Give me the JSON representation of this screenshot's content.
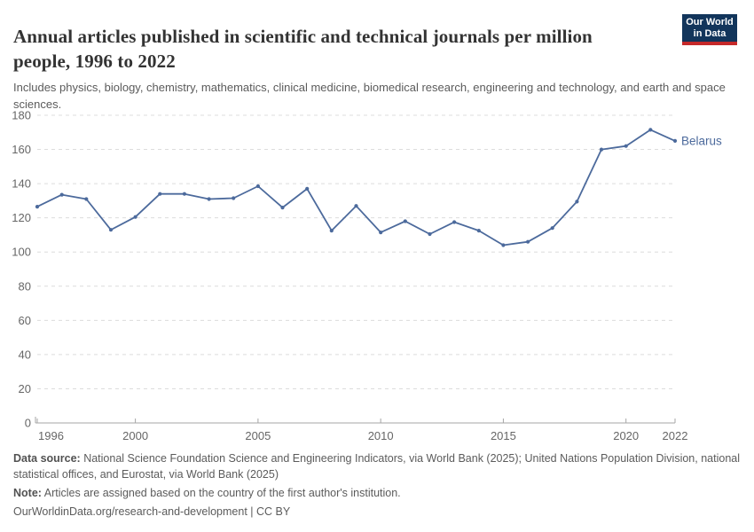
{
  "header": {
    "logo": {
      "line1": "Our World",
      "line2": "in Data"
    }
  },
  "chart_data": {
    "type": "line",
    "title": "Annual articles published in scientific and technical journals per million people, 1996 to 2022",
    "subtitle": "Includes physics, biology, chemistry, mathematics, clinical medicine, biomedical research, engineering and technology, and earth and space sciences.",
    "x": [
      1996,
      1997,
      1998,
      1999,
      2000,
      2001,
      2002,
      2003,
      2004,
      2005,
      2006,
      2007,
      2008,
      2009,
      2010,
      2011,
      2012,
      2013,
      2014,
      2015,
      2016,
      2017,
      2018,
      2019,
      2020,
      2021,
      2022
    ],
    "series": [
      {
        "name": "Belarus",
        "color": "#4C6A9C",
        "values": [
          126.5,
          133.5,
          131,
          113,
          120.5,
          134,
          134,
          131,
          131.5,
          138.5,
          126,
          137,
          112.5,
          127,
          111.5,
          118,
          110.5,
          117.5,
          112.5,
          104,
          106,
          114,
          129.5,
          160,
          162,
          171.5,
          165
        ]
      }
    ],
    "xlabel": "",
    "ylabel": "",
    "ylim": [
      0,
      180
    ],
    "yticks": [
      0,
      20,
      40,
      60,
      80,
      100,
      120,
      140,
      160,
      180
    ],
    "xticks": [
      1996,
      2000,
      2005,
      2010,
      2015,
      2020,
      2022
    ],
    "grid": "horizontal-dashed",
    "legend_position": "end-of-line-label",
    "end_label": "Belarus"
  },
  "colors": {
    "line": "#4C6A9C",
    "grid": "#dcdcdc",
    "axis": "#a5a5a5",
    "tick_label": "#666666",
    "title": "#333333",
    "subtitle": "#5b5b5b",
    "logo_bg": "#12355b",
    "logo_red": "#c5292a"
  },
  "footer": {
    "data_source_label": "Data source:",
    "data_source_text": " National Science Foundation Science and Engineering Indicators, via World Bank (2025); United Nations Population Division, national statistical offices, and Eurostat, via World Bank (2025)",
    "note_label": "Note:",
    "note_text": " Articles are assigned based on the country of the first author's institution.",
    "link": "OurWorldinData.org/research-and-development | CC BY"
  }
}
